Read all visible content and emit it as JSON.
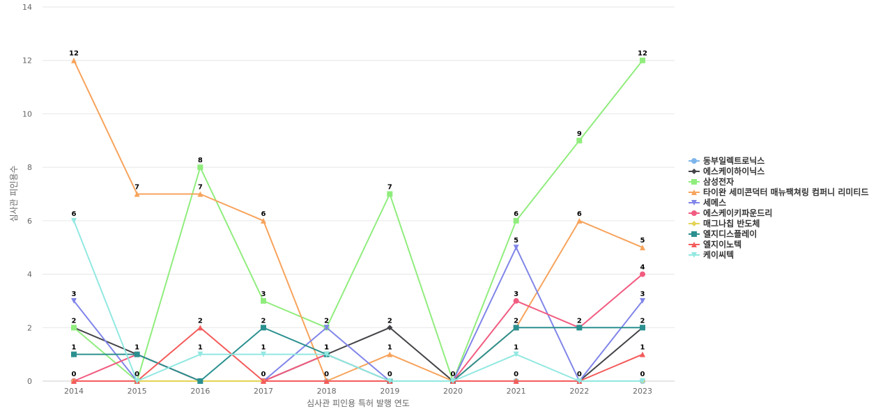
{
  "chart_data": {
    "type": "line",
    "title": "",
    "xlabel": "심사관 피인용 특허 발행 연도",
    "ylabel": "심사관 피인용수",
    "ylim": [
      0,
      14
    ],
    "yticks": [
      0,
      2,
      4,
      6,
      8,
      10,
      12,
      14
    ],
    "x": [
      "2014",
      "2015",
      "2016",
      "2017",
      "2018",
      "2019",
      "2020",
      "2021",
      "2022",
      "2023"
    ],
    "legend_position": "right",
    "series": [
      {
        "name": "동부일렉트로닉스",
        "color": "#7cb5ec",
        "marker": "circle",
        "values": [
          0,
          0,
          0,
          0,
          0,
          0,
          0,
          0,
          0,
          0
        ],
        "labels": [
          false,
          false,
          false,
          false,
          false,
          false,
          false,
          false,
          false,
          false
        ]
      },
      {
        "name": "에스케이하이닉스",
        "color": "#434348",
        "marker": "diamond",
        "values": [
          2,
          1,
          0,
          0,
          1,
          2,
          0,
          0,
          0,
          2
        ],
        "labels": [
          true,
          false,
          false,
          false,
          false,
          true,
          false,
          false,
          false,
          false
        ]
      },
      {
        "name": "삼성전자",
        "color": "#90ed7d",
        "marker": "square",
        "values": [
          2,
          0,
          8,
          3,
          2,
          7,
          0,
          6,
          9,
          12
        ],
        "labels": [
          false,
          false,
          true,
          true,
          false,
          true,
          false,
          true,
          true,
          true
        ]
      },
      {
        "name": "타이완 세미콘덕터 매뉴팩쳐링 컴퍼니 리미티드",
        "color": "#f7a35c",
        "marker": "triangle",
        "values": [
          12,
          7,
          7,
          6,
          0,
          1,
          0,
          2,
          6,
          5
        ],
        "labels": [
          true,
          true,
          true,
          true,
          true,
          true,
          false,
          true,
          true,
          true
        ]
      },
      {
        "name": "세메스",
        "color": "#8085e9",
        "marker": "triangle-down",
        "values": [
          3,
          0,
          0,
          0,
          2,
          0,
          0,
          5,
          0,
          3
        ],
        "labels": [
          true,
          false,
          false,
          false,
          true,
          true,
          false,
          true,
          false,
          true
        ]
      },
      {
        "name": "에스케이키파운드리",
        "color": "#f15c80",
        "marker": "circle",
        "values": [
          0,
          1,
          0,
          0,
          1,
          0,
          0,
          3,
          2,
          4
        ],
        "labels": [
          false,
          false,
          false,
          false,
          false,
          false,
          false,
          true,
          false,
          true
        ]
      },
      {
        "name": "매그나칩 반도체",
        "color": "#e4d354",
        "marker": "diamond",
        "values": [
          0,
          0,
          0,
          0,
          0,
          0,
          0,
          0,
          0,
          0
        ],
        "labels": [
          false,
          false,
          false,
          false,
          false,
          false,
          false,
          false,
          false,
          false
        ]
      },
      {
        "name": "엘지디스플레이",
        "color": "#2b908f",
        "marker": "square",
        "values": [
          1,
          1,
          0,
          2,
          1,
          0,
          0,
          2,
          2,
          2
        ],
        "labels": [
          true,
          true,
          false,
          true,
          true,
          false,
          false,
          false,
          true,
          true
        ]
      },
      {
        "name": "엘지이노텍",
        "color": "#f45b5b",
        "marker": "triangle",
        "values": [
          0,
          0,
          2,
          0,
          0,
          0,
          0,
          0,
          0,
          1
        ],
        "labels": [
          true,
          false,
          true,
          true,
          false,
          false,
          true,
          true,
          true,
          true
        ]
      },
      {
        "name": "케이씨텍",
        "color": "#91e8e1",
        "marker": "triangle-down",
        "values": [
          6,
          0,
          1,
          1,
          1,
          0,
          0,
          1,
          0,
          0
        ],
        "labels": [
          true,
          true,
          true,
          true,
          true,
          false,
          false,
          true,
          false,
          true
        ]
      }
    ]
  }
}
